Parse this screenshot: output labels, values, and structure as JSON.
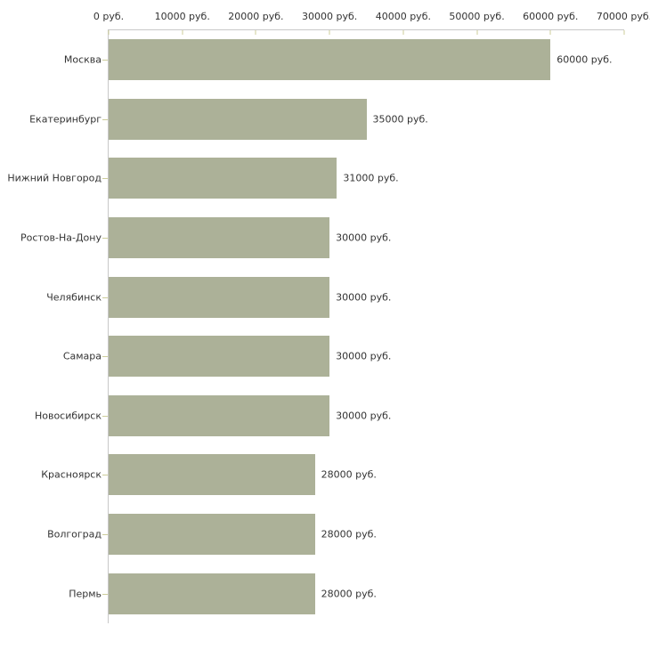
{
  "chart_data": {
    "type": "bar",
    "orientation": "horizontal",
    "title": "",
    "xlabel": "",
    "ylabel": "",
    "unit": "руб.",
    "categories": [
      "Москва",
      "Екатеринбург",
      "Нижний Новгород",
      "Ростов-На-Дону",
      "Челябинск",
      "Самара",
      "Новосибирск",
      "Красноярск",
      "Волгоград",
      "Пермь"
    ],
    "values": [
      60000,
      35000,
      31000,
      30000,
      30000,
      30000,
      30000,
      28000,
      28000,
      28000
    ],
    "value_labels": [
      "60000 руб.",
      "35000 руб.",
      "31000 руб.",
      "30000 руб.",
      "30000 руб.",
      "30000 руб.",
      "30000 руб.",
      "28000 руб.",
      "28000 руб.",
      "28000 руб."
    ],
    "x_axis": {
      "min": 0,
      "max": 70000,
      "tick_step": 10000,
      "tick_values": [
        0,
        10000,
        20000,
        30000,
        40000,
        50000,
        60000,
        70000
      ],
      "tick_labels": [
        "0 руб.",
        "10000 руб.",
        "20000 руб.",
        "30000 руб.",
        "40000 руб.",
        "50000 руб.",
        "60000 руб.",
        "70000 руб."
      ],
      "position": "top"
    },
    "grid": false,
    "legend": false,
    "colors": {
      "bar": "#acb198",
      "axis_line": "#c8c8c8",
      "tick": "#cccc99",
      "text": "#333333",
      "background": "#ffffff"
    }
  }
}
